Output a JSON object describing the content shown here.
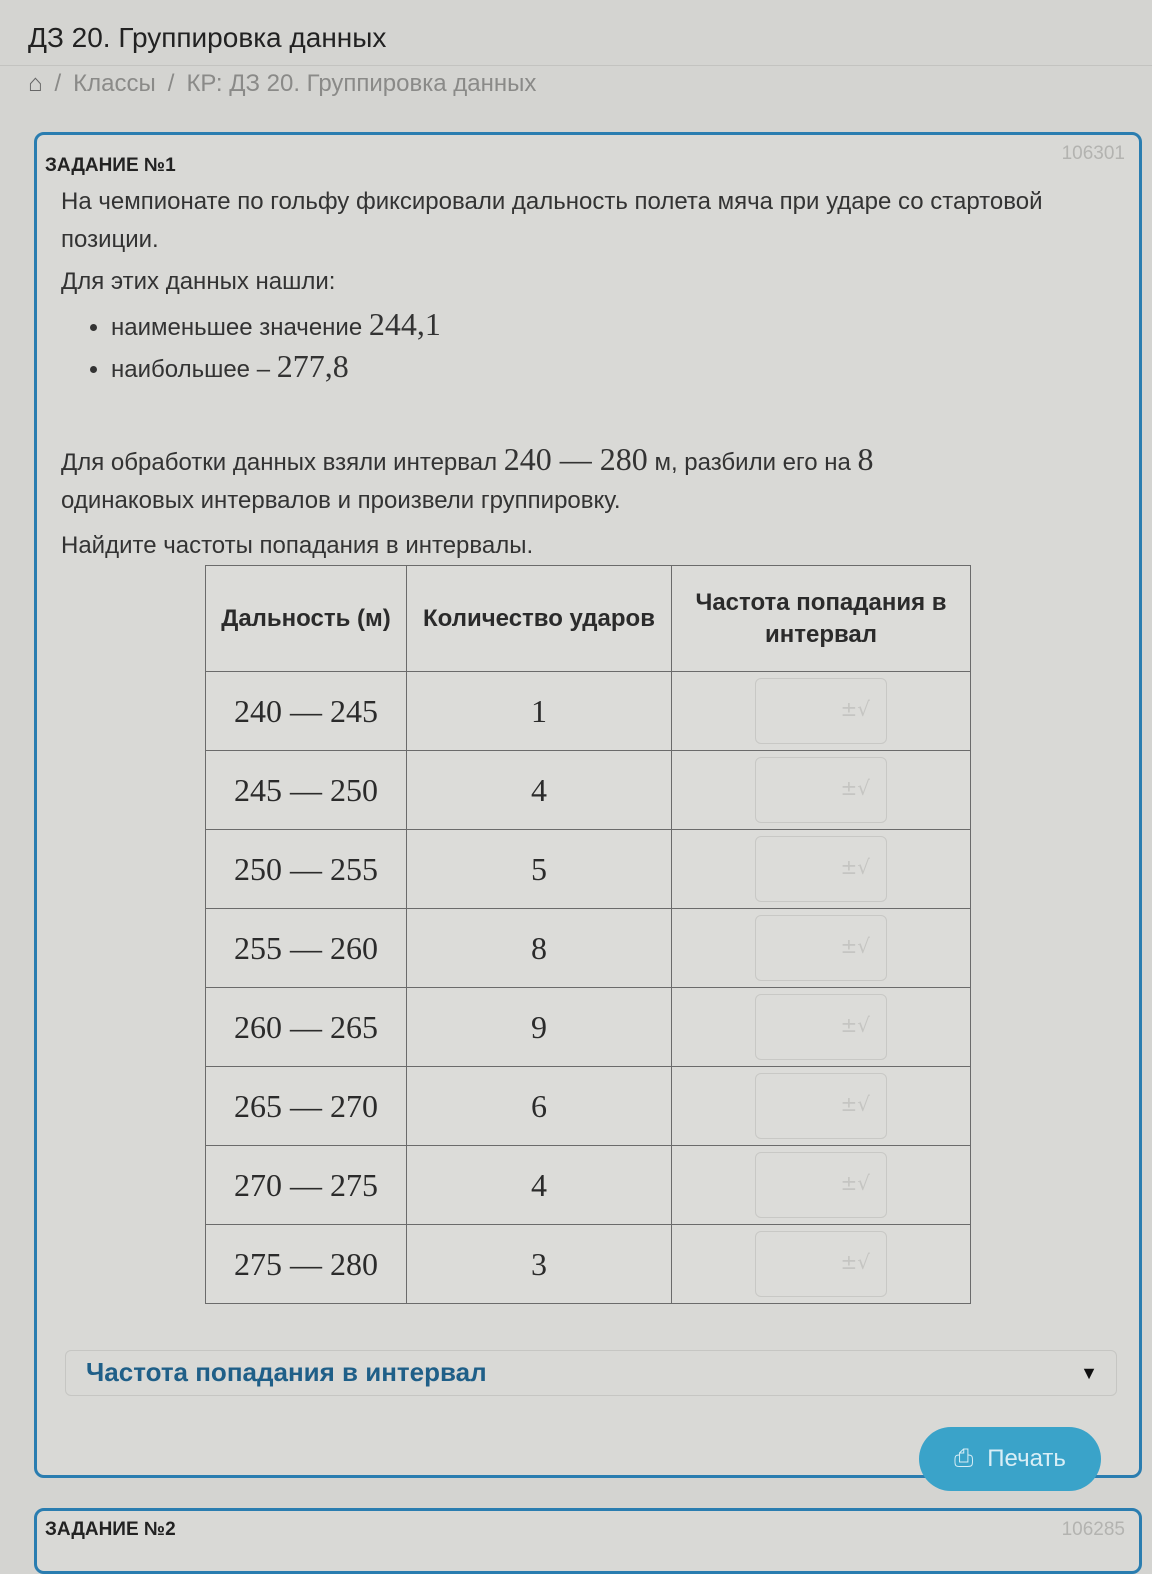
{
  "header": {
    "title": "ДЗ 20. Группировка данных",
    "breadcrumb": {
      "home_icon": "home-icon",
      "items": [
        "Классы",
        "КР: ДЗ 20. Группировка данных"
      ],
      "separator": "/"
    }
  },
  "task1": {
    "label": "ЗАДАНИЕ №1",
    "id": "106301",
    "intro": "На чемпионате по гольфу фиксировали дальность полета мяча при ударе со стартовой позиции.",
    "found_label": "Для этих данных нашли:",
    "bullets": [
      {
        "text": "наименьшее значение",
        "value": "244,1"
      },
      {
        "text": "наибольшее –",
        "value": "277,8"
      }
    ],
    "processing": {
      "before": "Для обработки данных взяли интервал",
      "interval": "240 — 280",
      "unit_text": "м, разбили его на",
      "count": "8",
      "after": "одинаковых интервалов и произвели группировку."
    },
    "question": "Найдите частоты попадания в интервалы.",
    "table": {
      "headers": [
        "Дальность (м)",
        "Количество ударов",
        "Частота попадания в интервал"
      ],
      "rows": [
        {
          "range": "240 — 245",
          "count": "1",
          "frequency": ""
        },
        {
          "range": "245 — 250",
          "count": "4",
          "frequency": ""
        },
        {
          "range": "250 — 255",
          "count": "5",
          "frequency": ""
        },
        {
          "range": "255 — 260",
          "count": "8",
          "frequency": ""
        },
        {
          "range": "260 — 265",
          "count": "9",
          "frequency": ""
        },
        {
          "range": "265 — 270",
          "count": "6",
          "frequency": ""
        },
        {
          "range": "270 — 275",
          "count": "4",
          "frequency": ""
        },
        {
          "range": "275 — 280",
          "count": "3",
          "frequency": ""
        }
      ]
    },
    "dropdown": {
      "label": "Частота попадания в интервал"
    },
    "print_button": "Печать"
  },
  "task2": {
    "label": "ЗАДАНИЕ №2",
    "id": "106285"
  },
  "colors": {
    "accent": "#2a7db0",
    "button": "#3aa3c9",
    "dropdown_text": "#1f5f88"
  }
}
